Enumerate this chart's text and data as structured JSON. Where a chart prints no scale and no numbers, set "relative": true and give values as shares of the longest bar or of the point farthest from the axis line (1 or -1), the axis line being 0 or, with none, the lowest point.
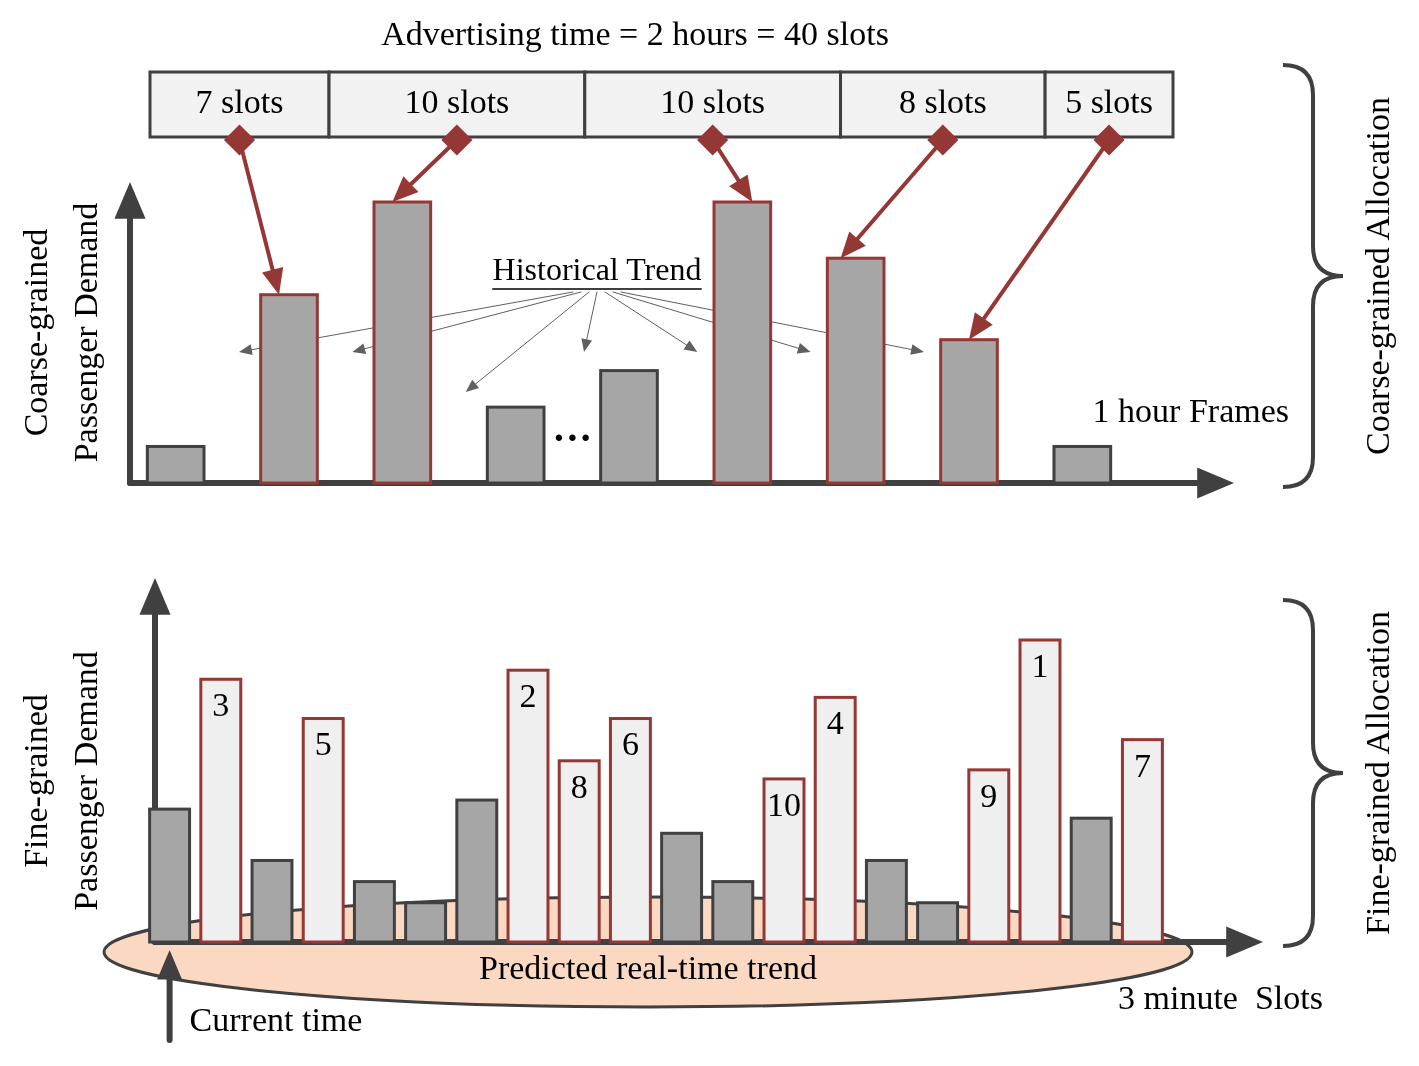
{
  "chart_data": [
    {
      "type": "bar",
      "title": "Advertising time = 2 hours = 40 slots",
      "ylabel": "Coarse-grained Passenger Demand",
      "xlabel": "1 hour Frames",
      "y2label": "Coarse-grained Allocation",
      "relative": true,
      "stacked": true,
      "categories": [
        null,
        null,
        null,
        null,
        null,
        null,
        null,
        null,
        null
      ],
      "series": [
        {
          "color": "#a6a6a6",
          "values": [
            0.13,
            null,
            null,
            0.27,
            0.4,
            null,
            null,
            null,
            0.13
          ]
        },
        {
          "color": "#a6a6a6",
          "values": [
            null,
            0.67,
            1,
            null,
            null,
            1,
            0.8,
            0.51,
            null
          ]
        }
      ],
      "annotations": [
        "7 slots",
        "10 slots",
        "10 slots",
        "8 slots",
        "5 slots",
        "Historical Trend",
        "···"
      ]
    },
    {
      "type": "bar",
      "ylabel": "Fine-grained Passenger Demand",
      "xlabel": "3 minute  Slots",
      "y2label": "Fine-grained Allocation",
      "relative": true,
      "stacked": true,
      "categories": [
        null,
        null,
        null,
        null,
        null,
        null,
        null,
        null,
        null,
        null,
        null,
        null,
        null,
        null,
        null,
        null,
        null,
        null,
        null,
        null
      ],
      "series": [
        {
          "color": "#a6a6a6",
          "values": [
            0.44,
            null,
            0.27,
            null,
            0.2,
            0.13,
            0.47,
            null,
            null,
            null,
            0.36,
            0.2,
            null,
            null,
            0.27,
            0.13,
            null,
            null,
            0.41,
            null
          ]
        },
        {
          "color": "#efefef",
          "values": [
            null,
            0.87,
            null,
            0.74,
            null,
            null,
            null,
            0.9,
            0.6,
            0.74,
            null,
            null,
            0.54,
            0.81,
            null,
            null,
            0.57,
            1,
            null,
            0.67
          ]
        }
      ],
      "annotations": [
        "Predicted real-time trend",
        "Current time",
        "3",
        "5",
        "2",
        "8",
        "6",
        "10",
        "4",
        "9",
        "1",
        "7"
      ]
    }
  ]
}
